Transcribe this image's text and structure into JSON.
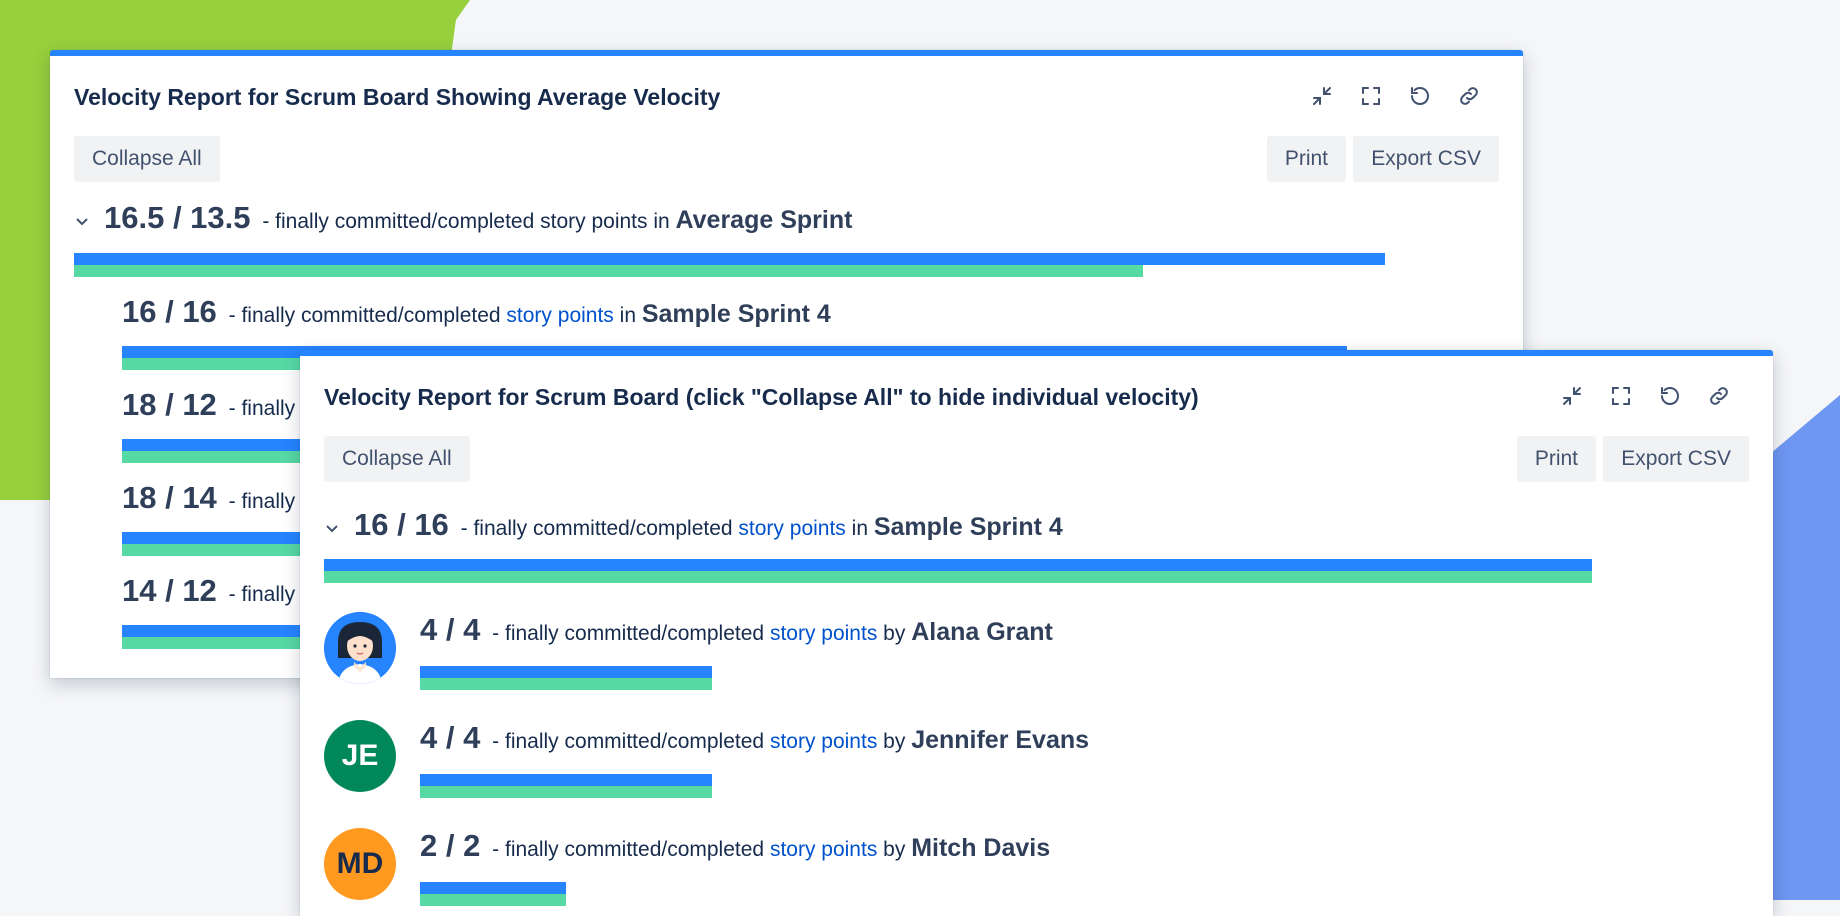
{
  "colors": {
    "committed_bar": "#2684ff",
    "completed_bar": "#57d9a3",
    "panel_accent": "#2684ff",
    "link": "#0052cc"
  },
  "panel1": {
    "title": "Velocity Report for Scrum Board Showing Average Velocity",
    "collapse_label": "Collapse All",
    "print_label": "Print",
    "export_label": "Export CSV",
    "icons": [
      "minimize-icon",
      "fullscreen-icon",
      "refresh-icon",
      "link-icon"
    ],
    "summary": {
      "value": "16.5 / 13.5",
      "desc": " - finally committed/completed story points in ",
      "sprint": "Average Sprint",
      "committed": 16.5,
      "completed": 13.5
    },
    "sprints": [
      {
        "value": "16 / 16",
        "desc": " - finally committed/completed ",
        "link": "story points",
        "in": " in ",
        "sprint": "Sample Sprint 4",
        "committed": 16,
        "completed": 16
      },
      {
        "value": "18 / 12",
        "desc": " - finally c",
        "committed": 18,
        "completed": 12
      },
      {
        "value": "18 / 14",
        "desc": " - finally c",
        "committed": 18,
        "completed": 14
      },
      {
        "value": "14 / 12",
        "desc": " - finally c",
        "committed": 14,
        "completed": 12
      }
    ]
  },
  "panel2": {
    "title": "Velocity Report for Scrum Board (click \"Collapse All\" to hide individual velocity)",
    "collapse_label": "Collapse All",
    "print_label": "Print",
    "export_label": "Export CSV",
    "icons": [
      "minimize-icon",
      "fullscreen-icon",
      "refresh-icon",
      "link-icon"
    ],
    "summary": {
      "value": "16 / 16",
      "desc": " - finally committed/completed ",
      "link": "story points",
      "in": " in ",
      "sprint": "Sample Sprint 4",
      "committed": 16,
      "completed": 16
    },
    "people": [
      {
        "value": "4 / 4",
        "desc": " - finally committed/completed ",
        "link": "story points",
        "by": " by ",
        "name": "Alana Grant",
        "avatar": "photo",
        "committed": 4,
        "completed": 4
      },
      {
        "value": "4 / 4",
        "desc": " - finally committed/completed ",
        "link": "story points",
        "by": " by ",
        "name": "Jennifer Evans",
        "initials": "JE",
        "avatar_color": "#00875a",
        "committed": 4,
        "completed": 4
      },
      {
        "value": "2 / 2",
        "desc": " - finally committed/completed ",
        "link": "story points",
        "by": " by ",
        "name": "Mitch Davis",
        "initials": "MD",
        "avatar_color": "#ff991f",
        "committed": 2,
        "completed": 2
      }
    ]
  }
}
